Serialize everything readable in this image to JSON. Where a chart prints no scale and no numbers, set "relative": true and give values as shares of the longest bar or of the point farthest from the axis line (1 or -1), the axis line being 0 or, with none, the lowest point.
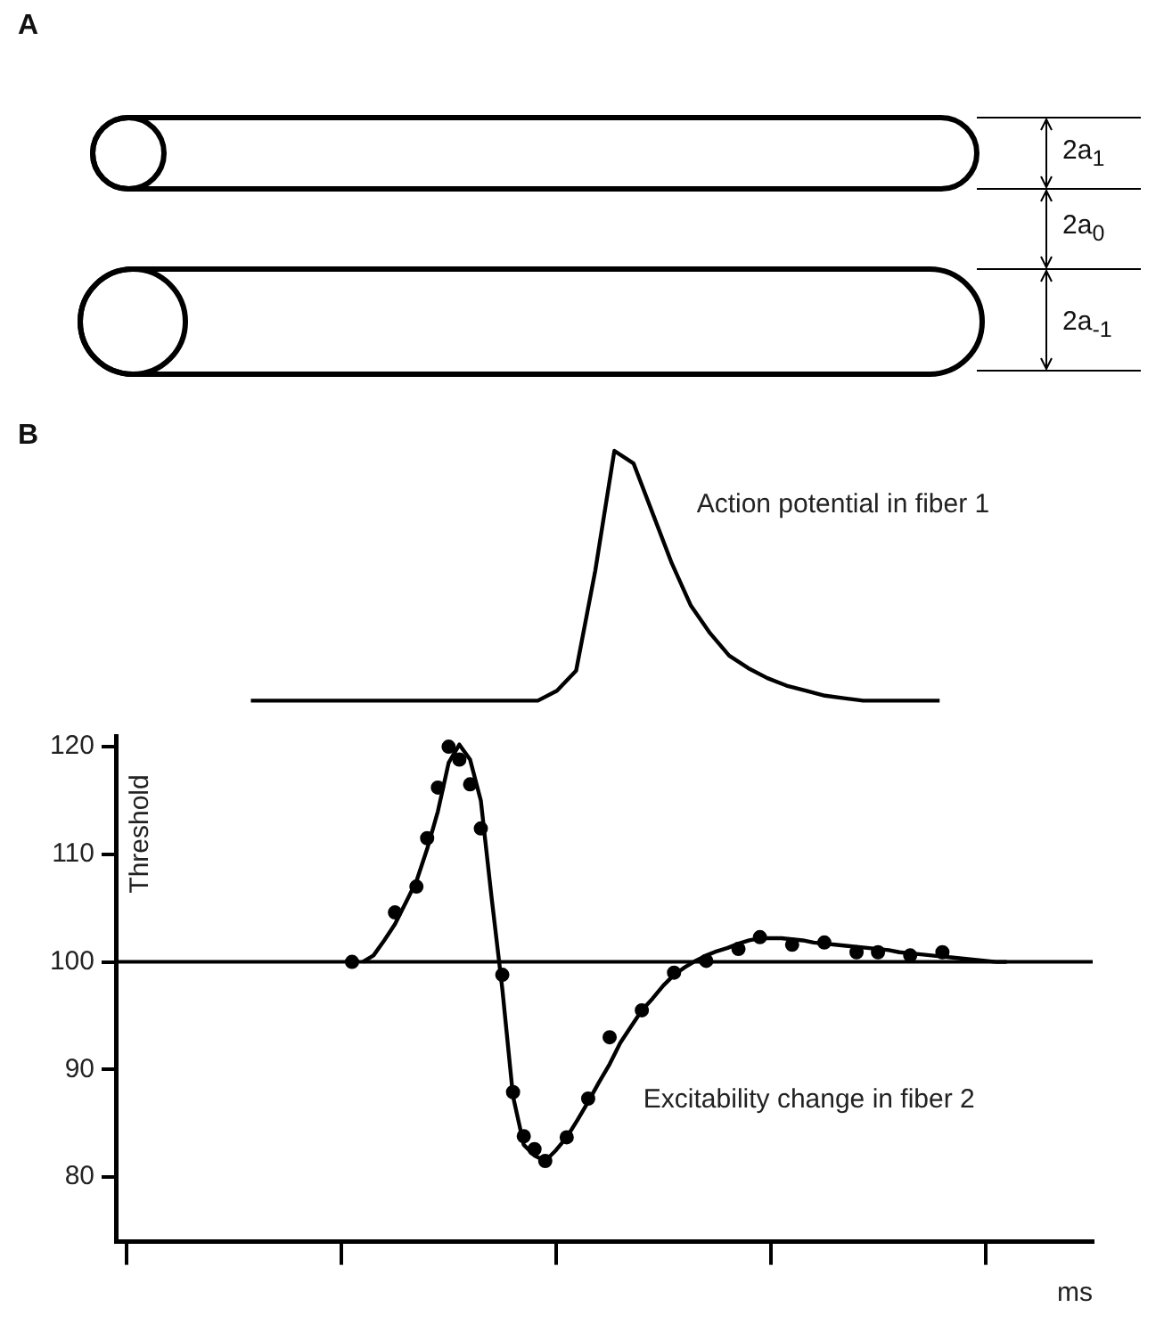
{
  "chart_data": [
    {
      "type": "other",
      "annotations": [
        "A",
        "2a$_{1}$",
        "2a$_{0}$",
        "2a$_{-1}$",
        "B"
      ]
    },
    {
      "type": "line",
      "relative": true,
      "tick_labels": false,
      "annotations": [
        "Action potential in fiber 1"
      ],
      "categories": [
        null,
        null,
        null,
        null,
        null,
        null,
        null,
        null,
        null,
        null,
        null,
        null,
        null,
        null,
        null,
        null,
        null,
        null,
        null,
        null,
        null,
        null,
        null,
        null,
        null,
        null,
        null,
        null,
        null,
        null,
        null,
        null,
        null,
        null,
        null,
        null,
        null,
        null,
        null,
        null,
        null,
        null,
        null,
        null,
        null,
        null
      ],
      "series": [
        {
          "color": "#000000",
          "marker": "none",
          "values": [
            null,
            0,
            0,
            0,
            0,
            0,
            0,
            0,
            0,
            0,
            0,
            0,
            0,
            0,
            0,
            0,
            0,
            0.04,
            0.12,
            0.52,
            1,
            0.95,
            0.75,
            0.55,
            0.38,
            0.27,
            0.18,
            0.13,
            0.09,
            0.06,
            0.04,
            0.02,
            0.01,
            0,
            0,
            0,
            0,
            0,
            null,
            null,
            null,
            null,
            null,
            null,
            null,
            null
          ]
        }
      ]
    },
    {
      "type": "line",
      "xlabel": "ms",
      "ylabel": "Threshold",
      "tick_labels": "y",
      "ylim": [
        74,
        121
      ],
      "categories": [
        null,
        null,
        null,
        null,
        null,
        null,
        null,
        null,
        null,
        null,
        null,
        null,
        null,
        null,
        null,
        null,
        null,
        null,
        null,
        null,
        null,
        null,
        null,
        null,
        null,
        null,
        null,
        null,
        null,
        null,
        null,
        null,
        null,
        null,
        null,
        null,
        null,
        null,
        null,
        null,
        null,
        null,
        null,
        null,
        null,
        null,
        null,
        null,
        null,
        null,
        null,
        null,
        null,
        null,
        null,
        null,
        null,
        null,
        null,
        null,
        null,
        null,
        null,
        null,
        null,
        null,
        null,
        null,
        null,
        null,
        null,
        null,
        null,
        null,
        null,
        null,
        null,
        null,
        null,
        null,
        null,
        null,
        null,
        null,
        null,
        null,
        null,
        null,
        null,
        null,
        null,
        null
      ],
      "yticks": [
        80,
        90,
        100,
        110,
        120
      ],
      "ref_lines": [
        {
          "axis": "y",
          "value": 100,
          "label": null,
          "color": "#000000"
        }
      ],
      "annotations": [
        "Excitability change in fiber 2"
      ],
      "series": [
        {
          "type": "scatter",
          "color": "#000000",
          "marker": "circle",
          "values": [
            null,
            null,
            null,
            null,
            null,
            null,
            null,
            null,
            null,
            null,
            null,
            null,
            null,
            null,
            null,
            null,
            null,
            null,
            null,
            null,
            null,
            null,
            100,
            null,
            null,
            null,
            104.6,
            null,
            107,
            111.5,
            116.2,
            120,
            118.8,
            116.5,
            112.4,
            null,
            98.8,
            87.9,
            83.8,
            82.6,
            81.5,
            null,
            83.7,
            null,
            87.3,
            null,
            93,
            null,
            null,
            95.5,
            null,
            null,
            99,
            null,
            null,
            100.1,
            null,
            null,
            101.2,
            null,
            102.3,
            null,
            null,
            101.6,
            null,
            null,
            101.8,
            null,
            null,
            100.9,
            null,
            100.9,
            null,
            null,
            100.6,
            null,
            null,
            100.9,
            null,
            null,
            null,
            null,
            null,
            null,
            null,
            null,
            null,
            null,
            null,
            null,
            null,
            null
          ]
        },
        {
          "type": "line",
          "color": "#000000",
          "marker": "none",
          "values": [
            null,
            null,
            null,
            null,
            null,
            null,
            null,
            null,
            null,
            null,
            null,
            null,
            null,
            null,
            null,
            null,
            null,
            null,
            null,
            null,
            null,
            null,
            null,
            100,
            100.6,
            102,
            103.5,
            105.5,
            107.5,
            110.5,
            114,
            118.5,
            120.2,
            118.8,
            115,
            106,
            97.5,
            87.5,
            83,
            82,
            81.5,
            82.5,
            83.7,
            85.3,
            87,
            88.8,
            90.5,
            92.5,
            94,
            95.5,
            96.6,
            97.8,
            98.8,
            99.5,
            100.1,
            100.6,
            101,
            101.3,
            101.7,
            102,
            102.2,
            102.2,
            102.2,
            102.1,
            102,
            101.8,
            101.7,
            101.6,
            101.5,
            101.4,
            101.3,
            101.2,
            101.1,
            100.9,
            100.8,
            100.7,
            100.6,
            100.5,
            100.4,
            100.3,
            100.2,
            100.1,
            100,
            100,
            null,
            null,
            null,
            null,
            null,
            null,
            null,
            null
          ]
        }
      ]
    }
  ]
}
